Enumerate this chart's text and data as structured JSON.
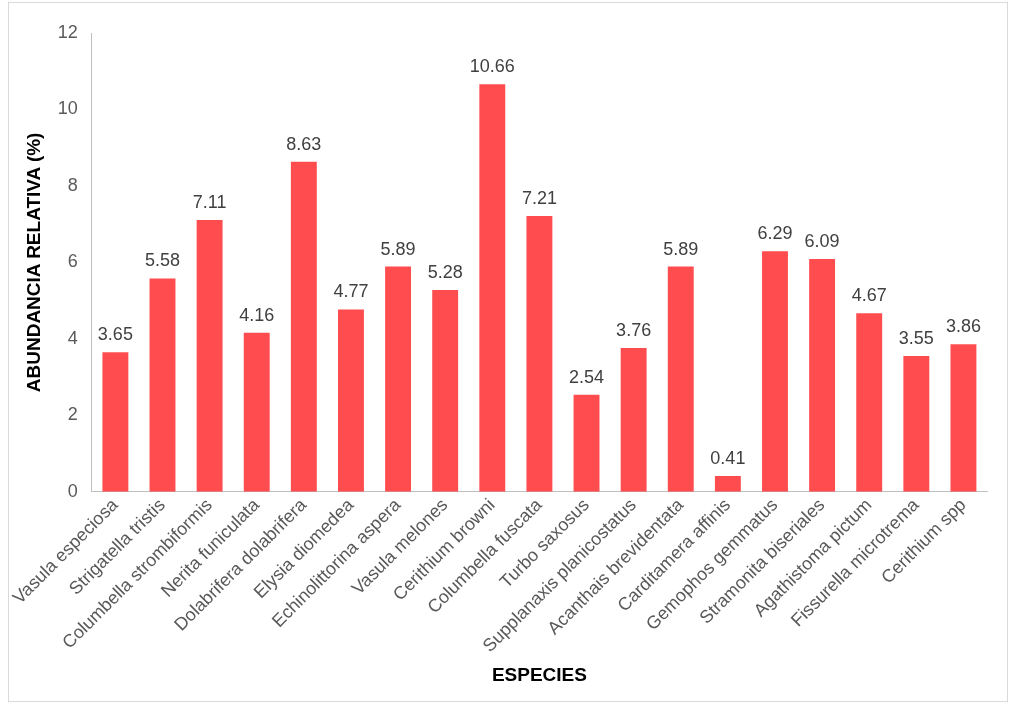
{
  "chart_data": {
    "type": "bar",
    "xlabel": "ESPECIES",
    "ylabel": "ABUNDANCIA RELATIVA (%)",
    "categories": [
      "Vasula especiosa",
      "Strigatella tristis",
      "Columbella strombiformis",
      "Nerita funiculata",
      "Dolabrifera dolabrifera",
      "Elysia diomedea",
      "Echinolittorina aspera",
      "Vasula melones",
      "Cerithium browni",
      "Columbella fuscata",
      "Turbo saxosus",
      "Supplanaxis planicostatus",
      "Acanthais brevidentata",
      "Carditamera affinis",
      "Gemophos gemmatus",
      "Stramonita biseriales",
      "Agathistoma pictum",
      "Fissurella microtrema",
      "Cerithium spp"
    ],
    "values": [
      3.65,
      5.58,
      7.11,
      4.16,
      8.63,
      4.77,
      5.89,
      5.28,
      10.66,
      7.21,
      2.54,
      3.76,
      5.89,
      0.41,
      6.29,
      6.09,
      4.67,
      3.55,
      3.86
    ],
    "color": "#ff4c4f",
    "ylim": [
      0,
      12
    ],
    "yticks": [
      0,
      2,
      4,
      6,
      8,
      10,
      12
    ],
    "grid": false,
    "legend": false,
    "data_labels": true
  }
}
